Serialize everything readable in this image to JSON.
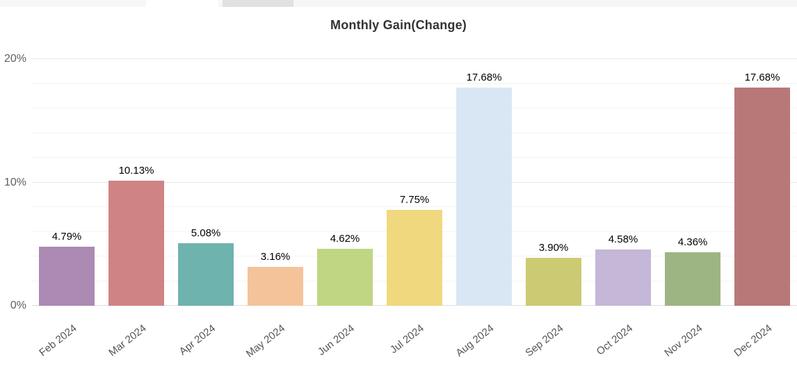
{
  "chrome": {
    "strip_colors": [
      "#f7f7f7",
      "#ffffff",
      "#f7f7f7",
      "#e1e1e1",
      "#f6f6f6"
    ]
  },
  "chart_data": {
    "type": "bar",
    "title": "Monthly Gain(Change)",
    "categories": [
      "Feb 2024",
      "Mar 2024",
      "Apr 2024",
      "May 2024",
      "Jun 2024",
      "Jul 2024",
      "Aug 2024",
      "Sep 2024",
      "Oct 2024",
      "Nov 2024",
      "Dec 2024"
    ],
    "values": [
      4.79,
      10.13,
      5.08,
      3.16,
      4.62,
      7.75,
      17.68,
      3.9,
      4.58,
      4.36,
      17.68
    ],
    "value_labels": [
      "4.79%",
      "10.13%",
      "5.08%",
      "3.16%",
      "4.62%",
      "7.75%",
      "17.68%",
      "3.90%",
      "4.58%",
      "4.36%",
      "17.68%"
    ],
    "bar_colors": [
      "#ab8ab4",
      "#cf8384",
      "#6fb3ae",
      "#f5c39a",
      "#bfd682",
      "#f0d87f",
      "#d9e7f5",
      "#cdca74",
      "#c5b7d7",
      "#9db582",
      "#b97878"
    ],
    "xlabel": "",
    "ylabel": "",
    "ylim": [
      0,
      20
    ],
    "y_ticks": [
      {
        "value": 0,
        "label": "0%"
      },
      {
        "value": 10,
        "label": "10%"
      },
      {
        "value": 20,
        "label": "20%"
      }
    ],
    "minor_grid_step": 2,
    "grid": true,
    "legend": false,
    "x_label_rotation": -38
  }
}
